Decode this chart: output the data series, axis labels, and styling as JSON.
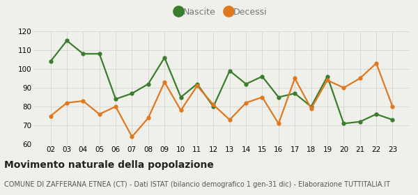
{
  "years": [
    "02",
    "03",
    "04",
    "05",
    "06",
    "07",
    "08",
    "09",
    "10",
    "11",
    "12",
    "13",
    "14",
    "15",
    "16",
    "17",
    "18",
    "19",
    "20",
    "21",
    "22",
    "23"
  ],
  "nascite": [
    104,
    115,
    108,
    108,
    84,
    87,
    92,
    106,
    85,
    92,
    80,
    99,
    92,
    96,
    85,
    87,
    80,
    96,
    71,
    72,
    76,
    73
  ],
  "decessi": [
    75,
    82,
    83,
    76,
    80,
    64,
    74,
    93,
    78,
    91,
    81,
    73,
    82,
    85,
    71,
    95,
    79,
    94,
    90,
    95,
    103,
    80
  ],
  "nascite_color": "#3a7d2c",
  "decessi_color": "#e07820",
  "bg_color": "#f0f0eb",
  "grid_color": "#d8d8d8",
  "ylim": [
    60,
    120
  ],
  "yticks": [
    60,
    70,
    80,
    90,
    100,
    110,
    120
  ],
  "title": "Movimento naturale della popolazione",
  "subtitle": "COMUNE DI ZAFFERANA ETNEA (CT) - Dati ISTAT (bilancio demografico 1 gen-31 dic) - Elaborazione TUTTITALIA.IT",
  "legend_nascite": "Nascite",
  "legend_decessi": "Decessi",
  "title_fontsize": 10,
  "subtitle_fontsize": 7,
  "tick_fontsize": 7.5,
  "legend_fontsize": 9,
  "marker_size": 4.5,
  "legend_marker_size": 12,
  "line_width": 1.6,
  "legend_text_color": "#777777"
}
